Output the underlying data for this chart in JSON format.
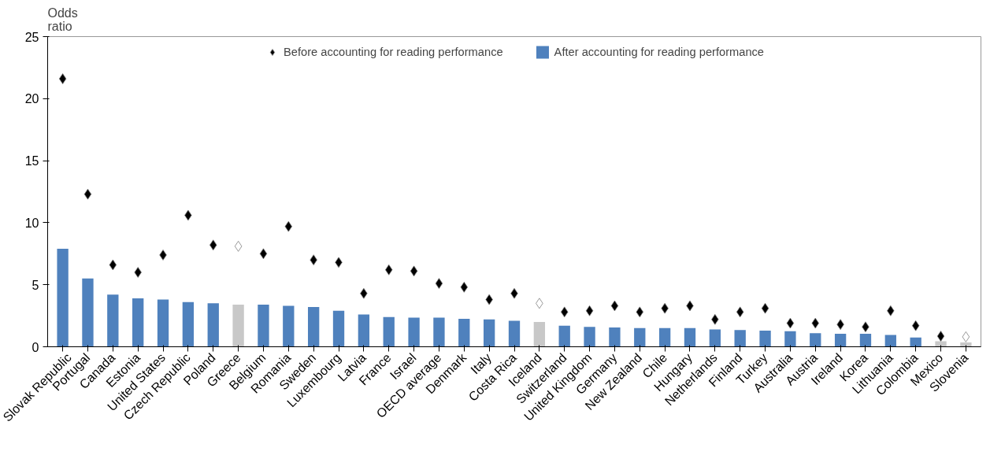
{
  "chart_data": {
    "type": "bar",
    "ylabel": "Odds ratio",
    "categories": [
      "Slovak Republic",
      "Portugal",
      "Canada",
      "Estonia",
      "United States",
      "Czech Republic",
      "Poland",
      "Greece",
      "Belgium",
      "Romania",
      "Sweden",
      "Luxembourg",
      "Latvia",
      "France",
      "Israel",
      "OECD average",
      "Denmark",
      "Italy",
      "Costa Rica",
      "Iceland",
      "Switzerland",
      "United Kingdom",
      "Germany",
      "New Zealand",
      "Chile",
      "Hungary",
      "Netherlands",
      "Finland",
      "Turkey",
      "Australia",
      "Austria",
      "Ireland",
      "Korea",
      "Lithuania",
      "Colombia",
      "Mexico",
      "Slovenia"
    ],
    "series": [
      {
        "name": "Before accounting for reading performance",
        "type": "scatter",
        "marker": "diamond",
        "colors": [
          "#000000",
          "#000000",
          "#000000",
          "#000000",
          "#000000",
          "#000000",
          "#000000",
          "#ffffff",
          "#000000",
          "#000000",
          "#000000",
          "#000000",
          "#000000",
          "#000000",
          "#000000",
          "#000000",
          "#000000",
          "#000000",
          "#000000",
          "#ffffff",
          "#000000",
          "#000000",
          "#000000",
          "#000000",
          "#000000",
          "#000000",
          "#000000",
          "#000000",
          "#000000",
          "#000000",
          "#000000",
          "#000000",
          "#000000",
          "#000000",
          "#000000",
          "#000000",
          "#ffffff"
        ],
        "values": [
          21.6,
          12.3,
          6.6,
          6.0,
          7.4,
          10.6,
          8.2,
          8.1,
          7.5,
          9.7,
          7.0,
          6.8,
          4.3,
          6.2,
          6.1,
          5.1,
          4.8,
          3.8,
          4.3,
          3.5,
          2.8,
          2.9,
          3.3,
          2.8,
          3.1,
          3.3,
          2.2,
          2.8,
          3.1,
          1.9,
          1.9,
          1.8,
          1.6,
          2.9,
          1.7,
          0.85,
          0.8
        ]
      },
      {
        "name": "After accounting for reading performance",
        "colors": [
          "#4f81bd",
          "#4f81bd",
          "#4f81bd",
          "#4f81bd",
          "#4f81bd",
          "#4f81bd",
          "#4f81bd",
          "#c8c8c8",
          "#4f81bd",
          "#4f81bd",
          "#4f81bd",
          "#4f81bd",
          "#4f81bd",
          "#4f81bd",
          "#4f81bd",
          "#4f81bd",
          "#4f81bd",
          "#4f81bd",
          "#4f81bd",
          "#c8c8c8",
          "#4f81bd",
          "#4f81bd",
          "#4f81bd",
          "#4f81bd",
          "#4f81bd",
          "#4f81bd",
          "#4f81bd",
          "#4f81bd",
          "#4f81bd",
          "#4f81bd",
          "#4f81bd",
          "#4f81bd",
          "#4f81bd",
          "#4f81bd",
          "#4f81bd",
          "#c8c8c8",
          "#c8c8c8"
        ],
        "values": [
          7.9,
          5.5,
          4.2,
          3.9,
          3.8,
          3.6,
          3.5,
          3.4,
          3.4,
          3.3,
          3.2,
          2.9,
          2.6,
          2.4,
          2.35,
          2.35,
          2.25,
          2.2,
          2.1,
          2.0,
          1.7,
          1.6,
          1.55,
          1.5,
          1.5,
          1.5,
          1.4,
          1.35,
          1.3,
          1.25,
          1.1,
          1.05,
          1.05,
          0.95,
          0.75,
          0.45,
          0.35
        ]
      }
    ],
    "ylim": [
      0,
      25
    ],
    "yticks": [
      0,
      5,
      10,
      15,
      20,
      25
    ],
    "legend": "top",
    "grid": false
  }
}
